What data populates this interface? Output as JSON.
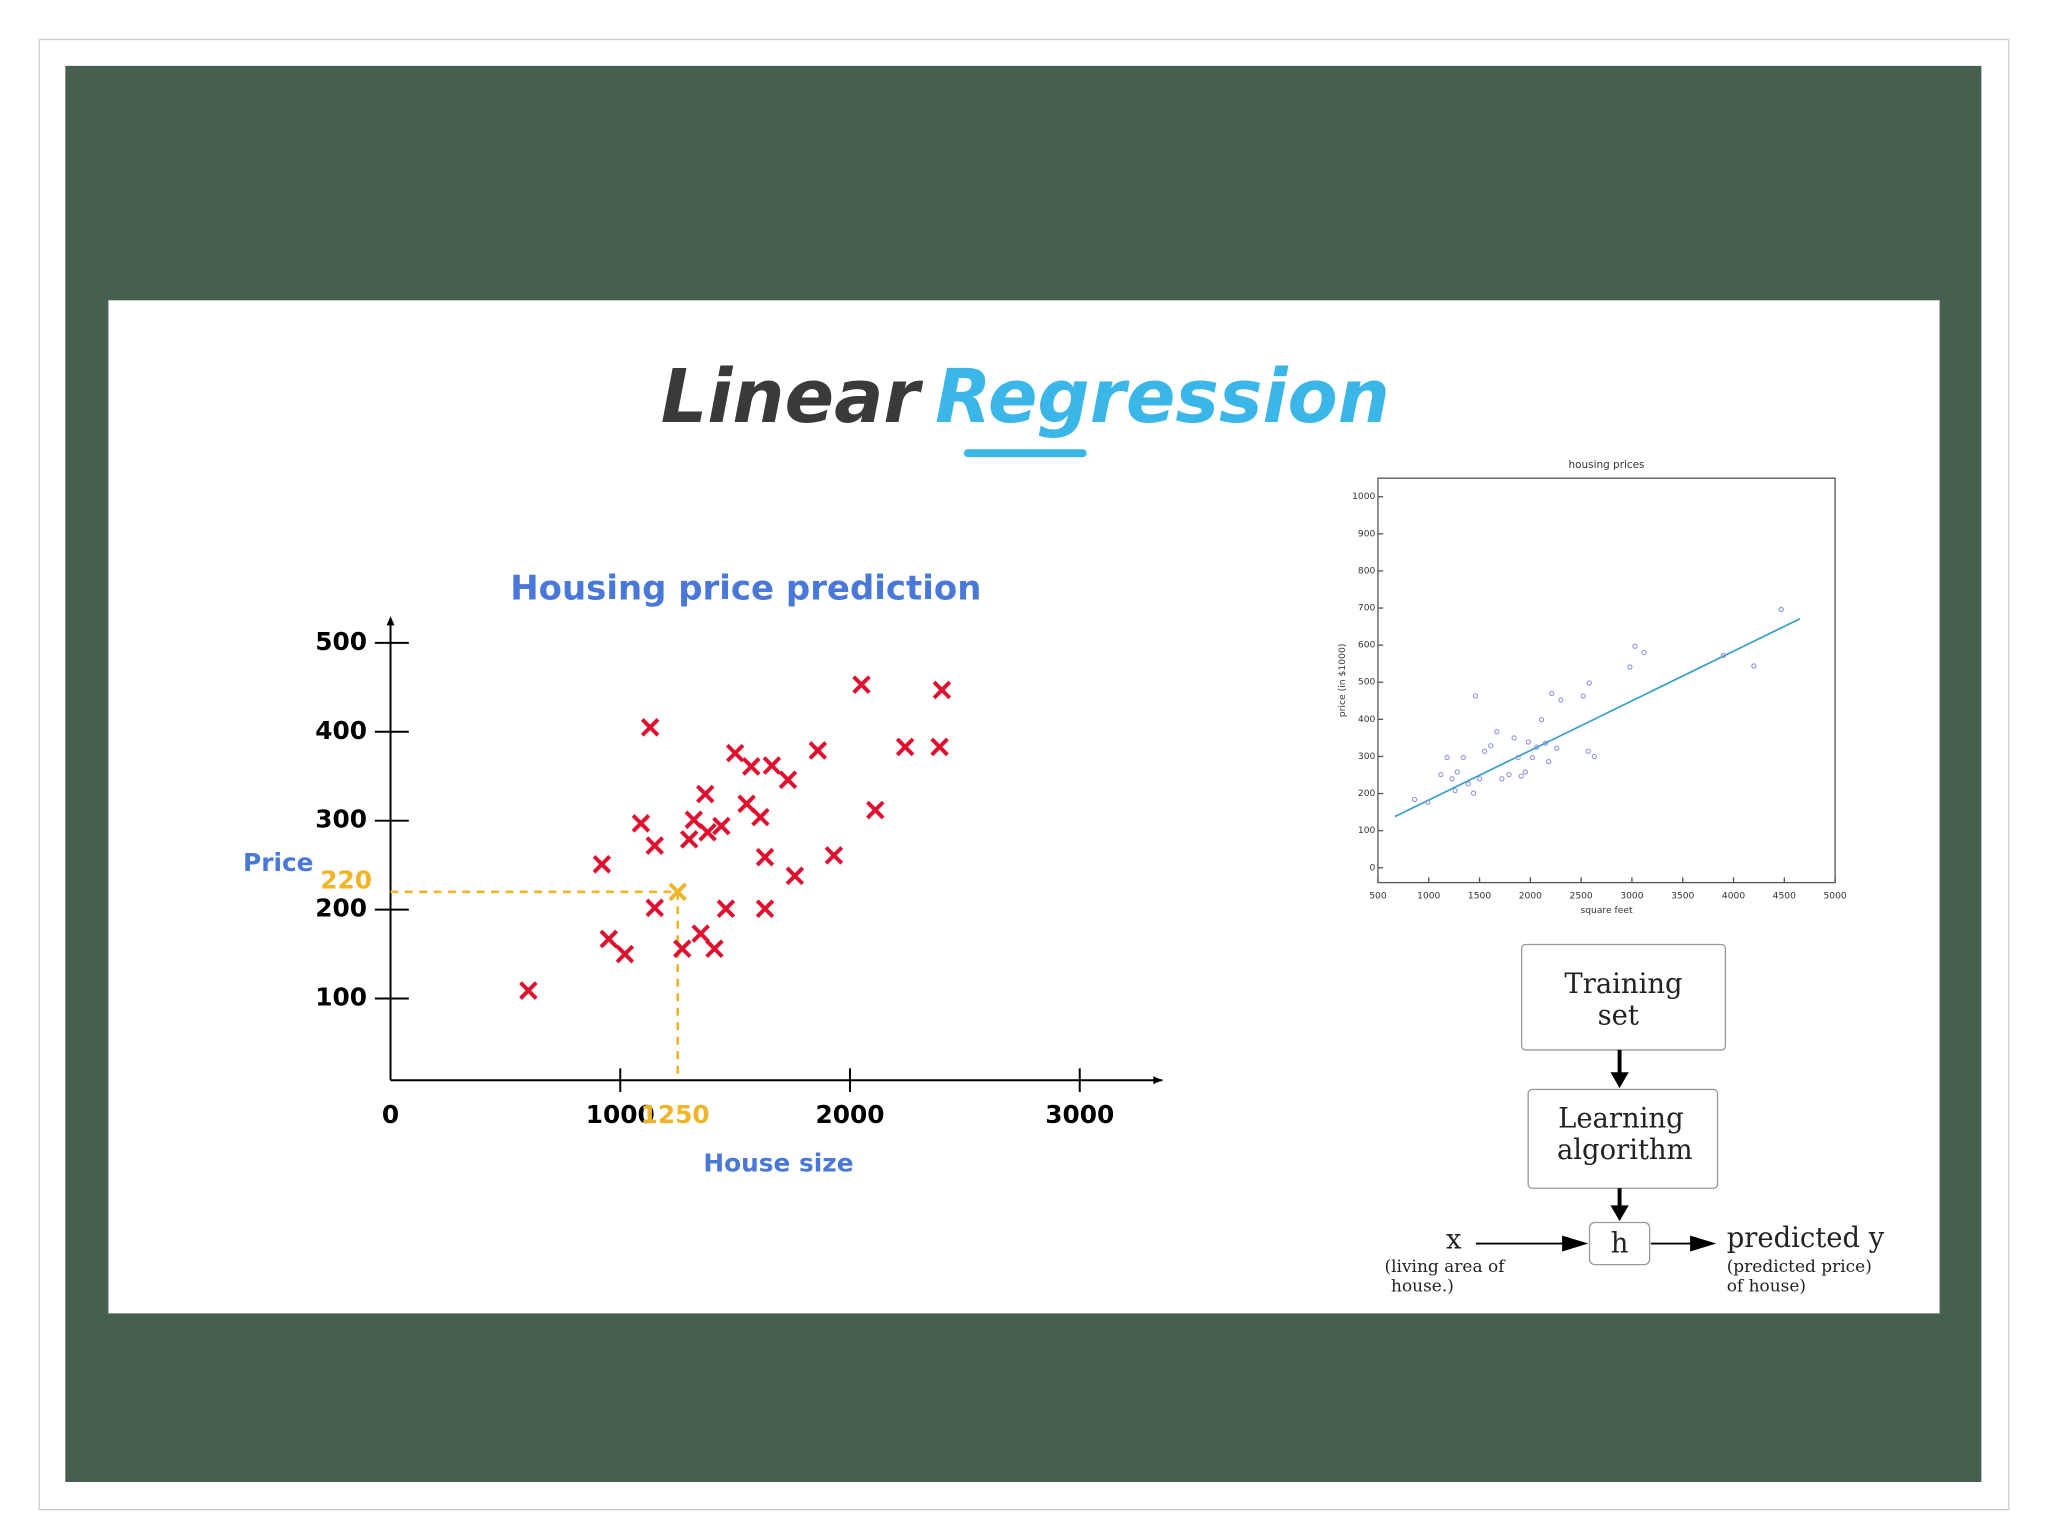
{
  "slide": {
    "title_dark": "Linear",
    "title_light": "Regression"
  },
  "chart_data": [
    {
      "type": "scatter",
      "marker": "x",
      "title": "Housing price prediction",
      "x_label": "House size",
      "y_label": "Price",
      "color": "#e0102f",
      "x": [
        600,
        920,
        950,
        1020,
        1090,
        1130,
        1150,
        1150,
        1270,
        1300,
        1320,
        1350,
        1370,
        1380,
        1410,
        1440,
        1460,
        1500,
        1550,
        1570,
        1610,
        1630,
        1630,
        1660,
        1730,
        1760,
        1860,
        1930,
        2050,
        2110,
        2240,
        2390,
        2400
      ],
      "values": [
        109,
        251,
        167,
        150,
        297,
        405,
        272,
        202,
        156,
        279,
        301,
        173,
        330,
        287,
        156,
        294,
        201,
        376,
        319,
        361,
        304,
        259,
        201,
        362,
        346,
        238,
        379,
        261,
        453,
        312,
        383,
        383,
        447
      ],
      "xlim": [
        0,
        3360
      ],
      "ylim": [
        0,
        530
      ],
      "xticks": [
        0,
        1000,
        2000,
        3000
      ],
      "yticks": [
        100,
        200,
        300,
        400,
        500
      ],
      "annotation": {
        "x": 1250,
        "y": 220,
        "color": "#f0b429"
      }
    },
    {
      "type": "scatter",
      "marker": "o",
      "title": "housing prices",
      "x_label": "square feet",
      "y_label": "price (in $1000)",
      "color": "#8a8fe0",
      "x": [
        860,
        990,
        1120,
        1180,
        1230,
        1260,
        1280,
        1340,
        1390,
        1440,
        1460,
        1500,
        1550,
        1610,
        1670,
        1720,
        1790,
        1840,
        1880,
        1910,
        1950,
        1980,
        2020,
        2060,
        2110,
        2150,
        2180,
        2210,
        2260,
        2300,
        2520,
        2580,
        2570,
        2630,
        2980,
        3030,
        3120,
        3900,
        4200,
        4470
      ],
      "values": [
        184,
        177,
        251,
        297,
        240,
        208,
        258,
        297,
        226,
        201,
        463,
        240,
        314,
        329,
        367,
        240,
        251,
        350,
        297,
        247,
        258,
        339,
        297,
        325,
        399,
        336,
        286,
        470,
        322,
        452,
        463,
        498,
        314,
        300,
        541,
        597,
        580,
        572,
        544,
        696
      ],
      "fit_line": {
        "x": [
          667,
          4653
        ],
        "values": [
          138,
          671
        ],
        "color": "#3aa0c8"
      },
      "xlim": [
        500,
        5000
      ],
      "ylim": [
        -40,
        1050
      ],
      "xticks": [
        500,
        1000,
        1500,
        2000,
        2500,
        3000,
        3500,
        4000,
        4500,
        5000
      ],
      "yticks": [
        0,
        100,
        200,
        300,
        400,
        500,
        600,
        700,
        800,
        900,
        1000
      ]
    }
  ],
  "diagram": {
    "training": [
      "Training",
      "set"
    ],
    "learning": [
      "Learning",
      "algorithm"
    ],
    "h": "h",
    "input": "x",
    "input_note": [
      "(living area of",
      "house.)"
    ],
    "output": "predicted y",
    "output_note": [
      "(predicted price)",
      "of house)"
    ]
  }
}
